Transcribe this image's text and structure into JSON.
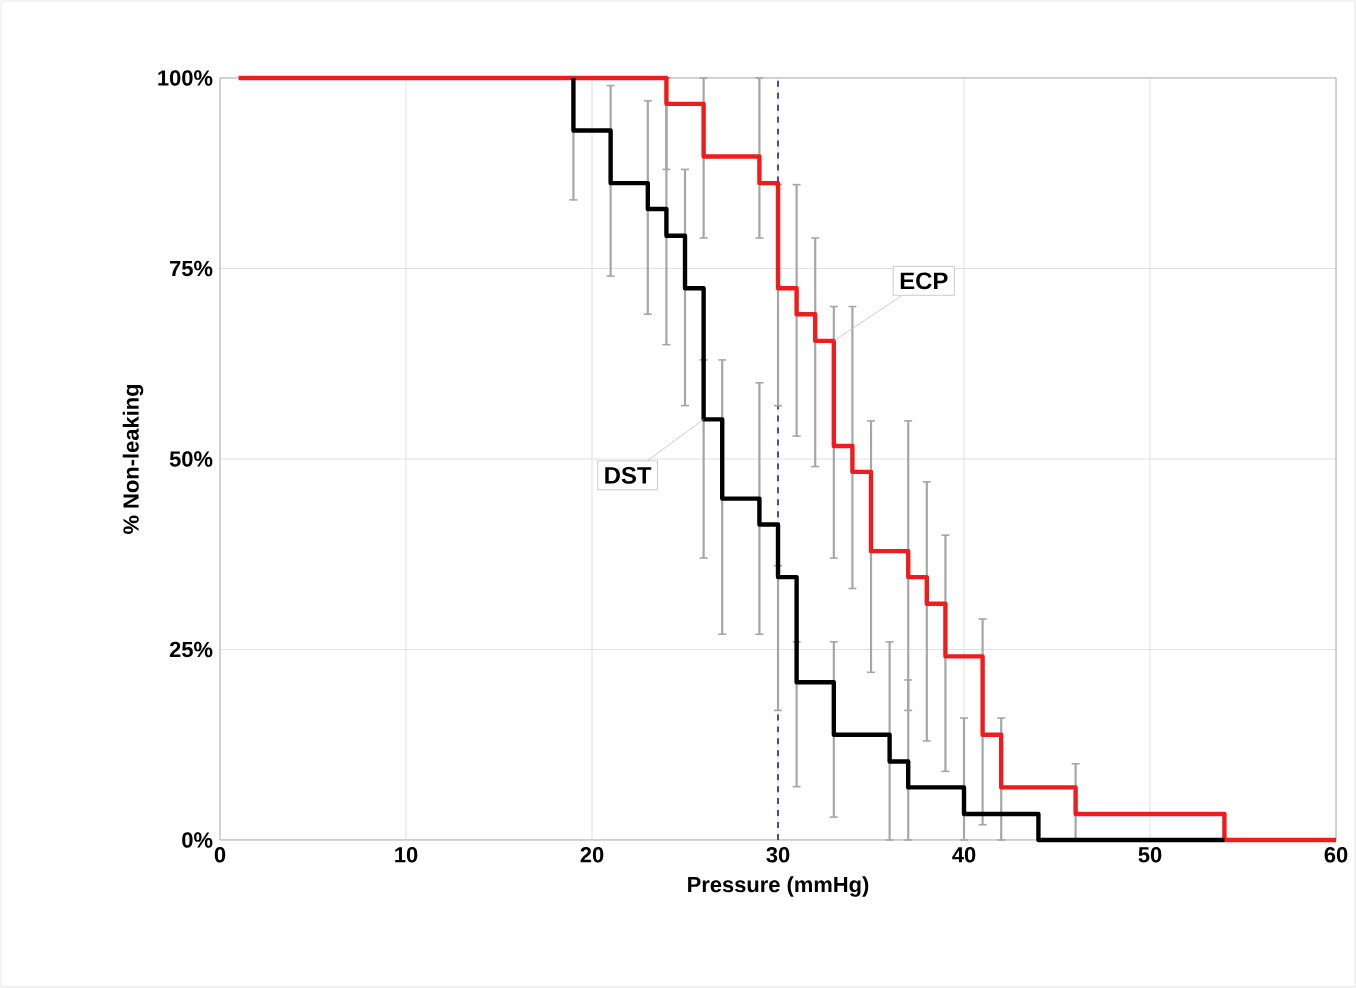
{
  "chart_data": {
    "type": "step",
    "xlabel": "Pressure (mmHg)",
    "ylabel": "% Non-leaking",
    "xlim": [
      0,
      60
    ],
    "ylim": [
      0,
      100
    ],
    "xticks": [
      0,
      10,
      20,
      30,
      40,
      50,
      60
    ],
    "yticks": [
      {
        "value": 0,
        "label": "0%"
      },
      {
        "value": 25,
        "label": "25%"
      },
      {
        "value": 50,
        "label": "50%"
      },
      {
        "value": 75,
        "label": "75%"
      },
      {
        "value": 100,
        "label": "100%"
      }
    ],
    "grid": true,
    "marker": "none",
    "line_style": "solid",
    "series": [
      {
        "color": "#ee1c1c",
        "x": [
          1,
          24,
          26,
          29,
          30,
          31,
          32,
          33,
          34,
          35,
          37,
          38,
          39,
          41,
          42,
          46,
          54,
          60
        ],
        "values": [
          100,
          96.6,
          89.7,
          86.2,
          72.4,
          69,
          65.5,
          51.7,
          48.3,
          37.9,
          34.5,
          31,
          24.1,
          13.8,
          6.9,
          3.4,
          0,
          0
        ],
        "errors": [
          null,
          [
            88,
            100
          ],
          [
            79,
            100
          ],
          [
            79,
            100
          ],
          [
            57,
            86
          ],
          [
            53,
            86
          ],
          [
            49,
            79
          ],
          [
            37,
            70
          ],
          [
            33,
            70
          ],
          [
            22,
            55
          ],
          [
            17,
            55
          ],
          [
            13,
            47
          ],
          [
            9,
            40
          ],
          [
            2,
            29
          ],
          [
            0,
            16
          ],
          [
            0,
            10
          ],
          null,
          null
        ]
      },
      {
        "color": "#000000",
        "x": [
          19,
          19,
          21,
          23,
          24,
          25,
          26,
          27,
          29,
          30,
          31,
          33,
          36,
          37,
          40,
          44,
          54
        ],
        "values": [
          100,
          93.1,
          86.2,
          82.8,
          79.3,
          72.4,
          55.2,
          44.8,
          41.4,
          34.5,
          20.7,
          13.8,
          10.3,
          6.9,
          3.4,
          0,
          0
        ],
        "errors": [
          null,
          [
            84,
            100
          ],
          [
            74,
            99
          ],
          [
            69,
            97
          ],
          [
            65,
            100
          ],
          [
            57,
            88
          ],
          [
            37,
            63
          ],
          [
            27,
            63
          ],
          [
            27,
            60
          ],
          [
            17,
            36
          ],
          [
            7,
            26
          ],
          [
            3,
            26
          ],
          [
            0,
            26
          ],
          [
            0,
            21
          ],
          [
            0,
            16
          ],
          null,
          null
        ]
      }
    ],
    "ref_lines": [
      {
        "axis": "x",
        "value": 30,
        "color": "#1f1f9f",
        "line_style": "dashed"
      }
    ],
    "annotations": [
      {
        "text": "DST",
        "x": 26,
        "y": 55.2
      },
      {
        "text": "ECP",
        "x": 33,
        "y": 65.5
      }
    ]
  }
}
